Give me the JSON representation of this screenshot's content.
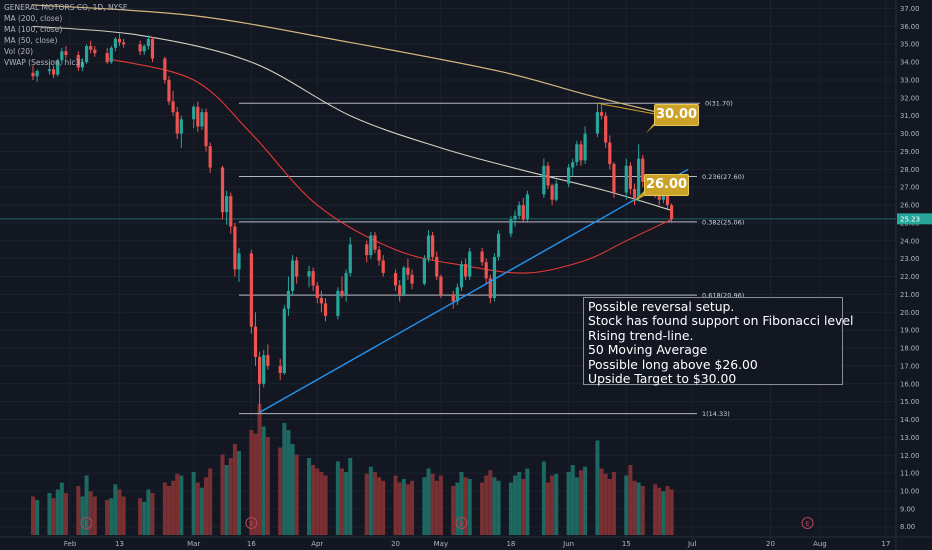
{
  "header": {
    "symbol_line": "GENERAL MOTORS CO, 1D, NYSE",
    "indicators": [
      "MA (200, close)",
      "MA (100, close)",
      "MA (50, close)",
      "Vol (20)",
      "VWAP (Session, hlc3)"
    ]
  },
  "price_axis": {
    "labels": [
      "37.00",
      "36.00",
      "35.00",
      "34.00",
      "33.00",
      "32.00",
      "31.00",
      "30.00",
      "29.00",
      "28.00",
      "27.00",
      "26.00",
      "25.00",
      "24.00",
      "23.00",
      "22.00",
      "21.00",
      "20.00",
      "19.00",
      "18.00",
      "17.00",
      "16.00",
      "15.00",
      "14.00",
      "13.00",
      "12.00",
      "11.00",
      "10.00",
      "9.00",
      "8.00"
    ],
    "last_price": "25.23"
  },
  "time_axis": {
    "labels": [
      "Feb",
      "13",
      "Mar",
      "16",
      "Apr",
      "20",
      "May",
      "18",
      "Jun",
      "15",
      "Jul",
      "20",
      "Aug",
      "17"
    ]
  },
  "annotations": {
    "target_30": "30.00",
    "entry_26": "26.00",
    "earnings_marker": "E",
    "note_lines": [
      "Possible reversal setup.",
      "Stock has found support on Fibonacci level",
      "Rising trend-line.",
      "50 Moving Average",
      "Possible long above $26.00",
      "Upside Target to $30.00"
    ]
  },
  "colors": {
    "background": "#131722",
    "up": "#26a69a",
    "down": "#ef5350",
    "trendline": "#2196f3",
    "ma50": "#e53935",
    "ma100": "#d1cfbd",
    "ma200": "#d4b87a",
    "fib": "#d1d4dc",
    "callout": "#c9a227"
  },
  "chart_data": {
    "type": "candlestick",
    "ylim": [
      7.3,
      37.4
    ],
    "fibonacci_levels": [
      {
        "ratio": "0",
        "price": 31.7,
        "label": "0(31.70)"
      },
      {
        "ratio": "0.236",
        "price": 27.6,
        "label": "0.236(27.60)"
      },
      {
        "ratio": "0.382",
        "price": 25.06,
        "label": "0.382(25.06)"
      },
      {
        "ratio": "0.618",
        "price": 20.96,
        "label": "0.618(20.96)"
      },
      {
        "ratio": "1",
        "price": 14.33,
        "label": "1(14.33)"
      }
    ],
    "trendline": {
      "start": {
        "date": "2020-03-18",
        "price": 14.4
      },
      "end": {
        "date": "2020-06-30",
        "price": 28.0
      }
    },
    "earnings_dates": [
      "2020-02-05",
      "2020-03-16",
      "2020-05-06",
      "2020-07-29"
    ],
    "series": [
      {
        "name": "Price",
        "dates": [
          "2020-01-23",
          "2020-01-24",
          "2020-01-27",
          "2020-01-28",
          "2020-01-29",
          "2020-01-30",
          "2020-01-31",
          "2020-02-03",
          "2020-02-04",
          "2020-02-05",
          "2020-02-06",
          "2020-02-07",
          "2020-02-10",
          "2020-02-11",
          "2020-02-12",
          "2020-02-13",
          "2020-02-14",
          "2020-02-18",
          "2020-02-19",
          "2020-02-20",
          "2020-02-21",
          "2020-02-24",
          "2020-02-25",
          "2020-02-26",
          "2020-02-27",
          "2020-02-28",
          "2020-03-02",
          "2020-03-03",
          "2020-03-04",
          "2020-03-05",
          "2020-03-06",
          "2020-03-09",
          "2020-03-10",
          "2020-03-11",
          "2020-03-12",
          "2020-03-13",
          "2020-03-16",
          "2020-03-17",
          "2020-03-18",
          "2020-03-19",
          "2020-03-20",
          "2020-03-23",
          "2020-03-24",
          "2020-03-25",
          "2020-03-26",
          "2020-03-27",
          "2020-03-30",
          "2020-03-31",
          "2020-04-01",
          "2020-04-02",
          "2020-04-03",
          "2020-04-06",
          "2020-04-07",
          "2020-04-08",
          "2020-04-09",
          "2020-04-13",
          "2020-04-14",
          "2020-04-15",
          "2020-04-16",
          "2020-04-17",
          "2020-04-20",
          "2020-04-21",
          "2020-04-22",
          "2020-04-23",
          "2020-04-24",
          "2020-04-27",
          "2020-04-28",
          "2020-04-29",
          "2020-04-30",
          "2020-05-01",
          "2020-05-04",
          "2020-05-05",
          "2020-05-06",
          "2020-05-07",
          "2020-05-08",
          "2020-05-11",
          "2020-05-12",
          "2020-05-13",
          "2020-05-14",
          "2020-05-15",
          "2020-05-18",
          "2020-05-19",
          "2020-05-20",
          "2020-05-21",
          "2020-05-22",
          "2020-05-26",
          "2020-05-27",
          "2020-05-28",
          "2020-05-29",
          "2020-06-01",
          "2020-06-02",
          "2020-06-03",
          "2020-06-04",
          "2020-06-05",
          "2020-06-08",
          "2020-06-09",
          "2020-06-10",
          "2020-06-11",
          "2020-06-12",
          "2020-06-15",
          "2020-06-16",
          "2020-06-17",
          "2020-06-18",
          "2020-06-19",
          "2020-06-22",
          "2020-06-23",
          "2020-06-24",
          "2020-06-25",
          "2020-06-26"
        ],
        "ohlc": [
          [
            33.4,
            33.8,
            33.0,
            33.2
          ],
          [
            33.2,
            33.6,
            32.9,
            33.5
          ],
          [
            33.5,
            34.0,
            33.3,
            33.6
          ],
          [
            33.6,
            33.8,
            33.1,
            33.3
          ],
          [
            33.3,
            34.2,
            33.2,
            34.1
          ],
          [
            34.1,
            34.8,
            33.9,
            34.6
          ],
          [
            34.6,
            34.9,
            34.2,
            34.4
          ],
          [
            34.4,
            34.6,
            33.5,
            33.7
          ],
          [
            33.7,
            34.2,
            33.5,
            34.0
          ],
          [
            34.0,
            35.0,
            33.9,
            34.9
          ],
          [
            34.9,
            35.2,
            34.5,
            34.7
          ],
          [
            34.7,
            34.9,
            34.3,
            34.5
          ],
          [
            34.5,
            34.8,
            33.9,
            34.0
          ],
          [
            34.0,
            34.9,
            33.9,
            34.8
          ],
          [
            34.8,
            35.4,
            34.6,
            35.3
          ],
          [
            35.3,
            35.6,
            34.9,
            35.1
          ],
          [
            35.1,
            35.3,
            34.8,
            35.0
          ],
          [
            35.0,
            35.2,
            34.4,
            34.6
          ],
          [
            34.6,
            35.0,
            34.4,
            34.9
          ],
          [
            34.9,
            35.5,
            34.7,
            35.3
          ],
          [
            35.3,
            35.4,
            34.0,
            34.2
          ],
          [
            34.2,
            34.3,
            32.8,
            33.0
          ],
          [
            33.0,
            33.2,
            31.6,
            31.8
          ],
          [
            31.8,
            32.4,
            31.0,
            31.2
          ],
          [
            31.2,
            31.5,
            29.7,
            30.0
          ],
          [
            30.0,
            31.0,
            29.2,
            30.8
          ],
          [
            30.8,
            31.6,
            30.3,
            31.5
          ],
          [
            31.5,
            31.8,
            30.1,
            30.4
          ],
          [
            30.4,
            31.4,
            30.2,
            31.2
          ],
          [
            31.2,
            31.4,
            29.0,
            29.3
          ],
          [
            29.3,
            29.5,
            27.8,
            28.1
          ],
          [
            28.1,
            28.2,
            25.2,
            25.6
          ],
          [
            25.6,
            26.8,
            24.9,
            26.5
          ],
          [
            26.5,
            26.7,
            24.4,
            24.8
          ],
          [
            24.8,
            25.0,
            22.0,
            22.4
          ],
          [
            22.4,
            23.6,
            21.7,
            23.3
          ],
          [
            23.3,
            23.5,
            18.8,
            19.2
          ],
          [
            19.2,
            20.0,
            17.0,
            17.5
          ],
          [
            17.5,
            17.8,
            14.33,
            16.0
          ],
          [
            16.0,
            17.9,
            15.8,
            17.6
          ],
          [
            17.6,
            18.2,
            16.8,
            17.0
          ],
          [
            17.0,
            17.4,
            16.2,
            16.6
          ],
          [
            16.6,
            20.4,
            16.5,
            20.2
          ],
          [
            20.2,
            22.0,
            19.8,
            21.2
          ],
          [
            21.2,
            23.2,
            21.0,
            22.9
          ],
          [
            22.9,
            23.1,
            21.6,
            22.0
          ],
          [
            22.0,
            22.6,
            21.4,
            22.3
          ],
          [
            22.3,
            22.5,
            21.2,
            21.5
          ],
          [
            21.5,
            21.7,
            20.5,
            20.8
          ],
          [
            20.8,
            21.2,
            20.0,
            20.5
          ],
          [
            20.5,
            20.8,
            19.5,
            19.8
          ],
          [
            19.8,
            21.4,
            19.6,
            21.2
          ],
          [
            21.2,
            22.0,
            20.8,
            21.0
          ],
          [
            21.0,
            22.4,
            20.6,
            22.2
          ],
          [
            22.2,
            24.2,
            22.0,
            23.8
          ],
          [
            23.8,
            24.0,
            22.8,
            23.2
          ],
          [
            23.2,
            24.5,
            23.0,
            24.3
          ],
          [
            24.3,
            24.5,
            23.3,
            23.5
          ],
          [
            23.5,
            23.7,
            22.6,
            22.9
          ],
          [
            22.9,
            23.2,
            22.0,
            22.2
          ],
          [
            22.2,
            22.4,
            21.2,
            21.5
          ],
          [
            21.5,
            21.8,
            20.6,
            21.0
          ],
          [
            21.0,
            22.6,
            20.9,
            22.5
          ],
          [
            22.5,
            23.0,
            21.8,
            22.1
          ],
          [
            22.1,
            22.4,
            21.3,
            21.6
          ],
          [
            21.6,
            23.2,
            21.5,
            23.0
          ],
          [
            23.0,
            24.6,
            22.8,
            24.3
          ],
          [
            24.3,
            24.5,
            22.9,
            23.1
          ],
          [
            23.1,
            23.4,
            21.8,
            22.0
          ],
          [
            22.0,
            22.1,
            20.8,
            21.0
          ],
          [
            21.0,
            21.2,
            20.2,
            20.6
          ],
          [
            20.6,
            21.6,
            20.4,
            21.4
          ],
          [
            21.4,
            22.9,
            21.2,
            22.7
          ],
          [
            22.7,
            23.0,
            21.8,
            22.0
          ],
          [
            22.0,
            23.6,
            21.8,
            23.4
          ],
          [
            23.4,
            23.6,
            22.6,
            22.8
          ],
          [
            22.8,
            23.0,
            21.6,
            21.9
          ],
          [
            21.9,
            22.1,
            20.5,
            20.8
          ],
          [
            20.8,
            23.3,
            20.6,
            23.1
          ],
          [
            23.1,
            24.6,
            22.9,
            24.4
          ],
          [
            24.4,
            25.4,
            24.2,
            25.2
          ],
          [
            25.2,
            25.7,
            24.8,
            25.4
          ],
          [
            25.4,
            26.2,
            25.2,
            26.0
          ],
          [
            26.0,
            26.4,
            25.0,
            25.2
          ],
          [
            25.2,
            26.8,
            25.0,
            26.6
          ],
          [
            26.6,
            28.6,
            26.4,
            28.2
          ],
          [
            28.2,
            28.4,
            26.9,
            27.1
          ],
          [
            27.1,
            27.2,
            26.0,
            26.3
          ],
          [
            26.3,
            27.4,
            26.2,
            27.2
          ],
          [
            27.2,
            28.3,
            27.0,
            28.1
          ],
          [
            28.1,
            28.6,
            27.6,
            28.4
          ],
          [
            28.4,
            29.6,
            28.2,
            29.4
          ],
          [
            29.4,
            29.6,
            28.2,
            28.5
          ],
          [
            28.5,
            30.4,
            28.3,
            30.0
          ],
          [
            30.0,
            31.7,
            29.8,
            31.2
          ],
          [
            31.2,
            31.6,
            30.8,
            31.0
          ],
          [
            31.0,
            31.2,
            29.2,
            29.5
          ],
          [
            29.5,
            29.9,
            28.0,
            28.3
          ],
          [
            28.3,
            28.4,
            26.4,
            26.7
          ],
          [
            26.7,
            28.6,
            26.3,
            28.2
          ],
          [
            28.2,
            28.4,
            26.6,
            26.9
          ],
          [
            26.9,
            27.2,
            26.0,
            26.4
          ],
          [
            26.4,
            29.4,
            26.2,
            28.6
          ],
          [
            28.6,
            28.8,
            27.0,
            27.3
          ],
          [
            27.3,
            27.5,
            26.4,
            26.7
          ],
          [
            26.7,
            27.0,
            26.0,
            26.3
          ],
          [
            26.3,
            27.2,
            26.1,
            26.8
          ],
          [
            26.8,
            27.0,
            25.8,
            26.0
          ],
          [
            26.0,
            26.1,
            25.0,
            25.23
          ]
        ],
        "volume": [
          22,
          20,
          24,
          21,
          26,
          30,
          24,
          28,
          22,
          34,
          25,
          22,
          20,
          21,
          29,
          26,
          22,
          21,
          19,
          26,
          24,
          30,
          28,
          31,
          35,
          34,
          36,
          30,
          27,
          33,
          38,
          46,
          40,
          44,
          52,
          48,
          60,
          58,
          75,
          62,
          56,
          50,
          64,
          60,
          52,
          46,
          44,
          40,
          38,
          36,
          34,
          42,
          38,
          36,
          44,
          35,
          39,
          36,
          33,
          31,
          34,
          30,
          32,
          29,
          31,
          33,
          38,
          35,
          31,
          34,
          28,
          30,
          36,
          33,
          32,
          30,
          34,
          37,
          33,
          31,
          30,
          34,
          36,
          32,
          38,
          42,
          30,
          34,
          35,
          36,
          40,
          33,
          37,
          39,
          54,
          38,
          35,
          32,
          36,
          34,
          40,
          31,
          30,
          28,
          29,
          27,
          25,
          28,
          26
        ]
      },
      {
        "name": "MA (50, close)",
        "anchors": [
          {
            "date": "2020-02-10",
            "price": 34.2
          },
          {
            "date": "2020-03-02",
            "price": 33.0
          },
          {
            "date": "2020-03-16",
            "price": 30.0
          },
          {
            "date": "2020-04-01",
            "price": 26.0
          },
          {
            "date": "2020-04-20",
            "price": 23.5
          },
          {
            "date": "2020-05-07",
            "price": 22.6
          },
          {
            "date": "2020-05-22",
            "price": 22.2
          },
          {
            "date": "2020-06-05",
            "price": 22.9
          },
          {
            "date": "2020-06-15",
            "price": 24.0
          },
          {
            "date": "2020-06-26",
            "price": 25.2
          }
        ]
      },
      {
        "name": "MA (100, close)",
        "anchors": [
          {
            "date": "2020-01-23",
            "price": 36.0
          },
          {
            "date": "2020-02-18",
            "price": 35.5
          },
          {
            "date": "2020-03-16",
            "price": 34.0
          },
          {
            "date": "2020-04-09",
            "price": 31.0
          },
          {
            "date": "2020-05-01",
            "price": 29.2
          },
          {
            "date": "2020-05-20",
            "price": 28.0
          },
          {
            "date": "2020-06-10",
            "price": 26.8
          },
          {
            "date": "2020-06-26",
            "price": 25.7
          }
        ]
      },
      {
        "name": "MA (200, close)",
        "anchors": [
          {
            "date": "2020-01-23",
            "price": 37.2
          },
          {
            "date": "2020-03-02",
            "price": 36.6
          },
          {
            "date": "2020-04-09",
            "price": 35.1
          },
          {
            "date": "2020-05-15",
            "price": 33.5
          },
          {
            "date": "2020-06-05",
            "price": 32.2
          },
          {
            "date": "2020-06-26",
            "price": 31.0
          }
        ]
      }
    ]
  }
}
